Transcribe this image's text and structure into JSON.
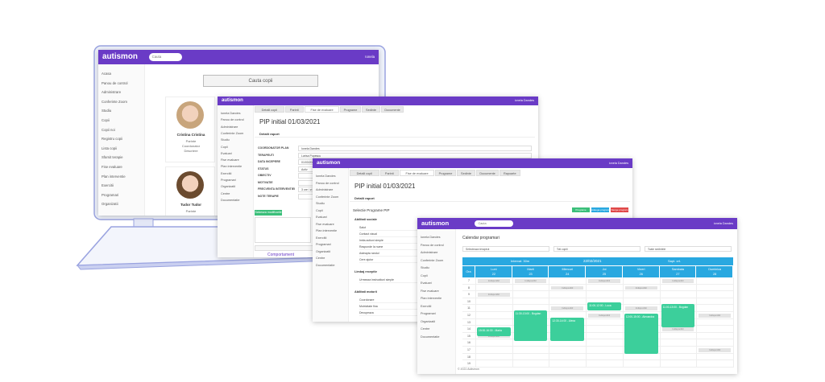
{
  "laptop": {
    "logo": "autismon",
    "search": "Cauta",
    "user": "Ionela",
    "sidebar": [
      "Acasa",
      "Panou de control",
      "Administrare",
      "Conferinte Zoom",
      "Studiu",
      "Copii",
      "Copii noi",
      "Registru copii",
      "Lista copii",
      "Sfarsit terapie",
      "Fise evaluare",
      "Plan interventie",
      "Exercitii",
      "Programari",
      "Organizatii"
    ],
    "button": "Cauta copii",
    "children": [
      {
        "name": "Cristina Cristina",
        "lines": [
          "Parinte",
          "Coordonator",
          "Descriere"
        ]
      },
      {
        "name": "Tudor Tudor",
        "lines": [
          "Parinte"
        ]
      }
    ]
  },
  "pip_window": {
    "logo": "autismon",
    "user": "Ionela Dandes",
    "sidebar": [
      "Ionela Dandes",
      "Panou de control",
      "Administrare",
      "Conferinte Zoom",
      "Studiu",
      "Copii",
      "Evaluari",
      "Fise evaluare",
      "Plan interventie",
      "Exercitii",
      "Programari",
      "Organizatii",
      "Centre",
      "Documentatie"
    ],
    "tabs": [
      "Detalii copil",
      "Parinti",
      "Fise de evaluare",
      "Programe",
      "Sedinte",
      "Documente"
    ],
    "title": "PIP initial 01/03/2021",
    "section": "Detalii raport",
    "fields": [
      {
        "label": "COORDONATOR PLAN",
        "value": "Ionela Dandes"
      },
      {
        "label": "TERAPEUTI",
        "value": "Larisa Popescu"
      },
      {
        "label": "DATA INCEPERE",
        "value": "01/03/2021"
      },
      {
        "label": "STATUS",
        "value": "Activ"
      },
      {
        "label": "OBIECTIV",
        "value": ""
      },
      {
        "label": "MOTIVATIE",
        "value": ""
      },
      {
        "label": "FRECVENTA INTERVENTIEI",
        "value": "3 ore / zi"
      },
      {
        "label": "NOTE TERAPIE",
        "value": ""
      }
    ],
    "button": "Salveaza modificarile",
    "footer": "Comportament"
  },
  "program_window": {
    "logo": "autismon",
    "user": "Ionela Dandes",
    "sidebar": [
      "Ionela Dandes",
      "Panou de control",
      "Administrare",
      "Conferinte Zoom",
      "Studiu",
      "Copii",
      "Evaluari",
      "Fise evaluare",
      "Plan interventie",
      "Exercitii",
      "Programari",
      "Organizatii",
      "Centre",
      "Documentatie"
    ],
    "tabs": [
      "Detalii copil",
      "Parinti",
      "Fise de evaluare",
      "Programe",
      "Sedinte",
      "Documente",
      "Rapoarte"
    ],
    "title": "PIP initial 01/03/2021",
    "section": "Detalii raport",
    "subtitle": "Selectie Programe PIP",
    "actions": [
      "Programe",
      "Adauga program",
      "Sterge program"
    ],
    "groups": [
      {
        "title": "Abilitati sociale",
        "items": [
          "Salut",
          "Contact vizual",
          "Imita actiuni simple",
          "Raspunde la nume",
          "Asteapta randul",
          "Cere ajutor"
        ]
      },
      {
        "title": "Limbaj receptiv",
        "items": [
          "Urmeaza instructiuni simple"
        ]
      },
      {
        "title": "Abilitati motorii",
        "items": [
          "Coordonare",
          "Motricitate fina",
          "Decupeaza"
        ]
      }
    ]
  },
  "calendar_window": {
    "logo": "autismon",
    "search": "Cauta",
    "user": "Ionela Dandes",
    "sidebar": [
      "Ionela Dandes",
      "Panou de control",
      "Administrare",
      "Conferinte Zoom",
      "Studiu",
      "Copii",
      "Evaluari",
      "Fise evaluare",
      "Plan interventie",
      "Exercitii",
      "Programari",
      "Organizatii",
      "Centre",
      "Documentatie"
    ],
    "title": "Calendar programari",
    "filters": [
      "Selecteaza terapeut",
      "Toti copiii",
      "Toate sedintele"
    ],
    "interval": "Interval: 30m",
    "date": "22/02/2021",
    "week": "Sapt. crt.",
    "time_header": "Ora",
    "days": [
      {
        "name": "Luni",
        "date": "22"
      },
      {
        "name": "Marti",
        "date": "23"
      },
      {
        "name": "Miercuri",
        "date": "24"
      },
      {
        "name": "Joi",
        "date": "25"
      },
      {
        "name": "Vineri",
        "date": "26"
      },
      {
        "name": "Sambata",
        "date": "27"
      },
      {
        "name": "Duminica",
        "date": "28"
      }
    ],
    "hours": [
      "7",
      "8",
      "9",
      "10",
      "11",
      "12",
      "13",
      "14",
      "15",
      "16",
      "17",
      "18",
      "19"
    ],
    "unavailable": "Indisponibil",
    "events": [
      "15:00-16:30 - Maria",
      "11:30-13:00 - Bogdan",
      "12:30-14:00 - Alexa",
      "11:00-12:00 - Luca",
      "12:00-15:00 - Alexandra",
      "11:00-13:00 - Bogdan"
    ],
    "footer": "© 2021 Autismon"
  }
}
